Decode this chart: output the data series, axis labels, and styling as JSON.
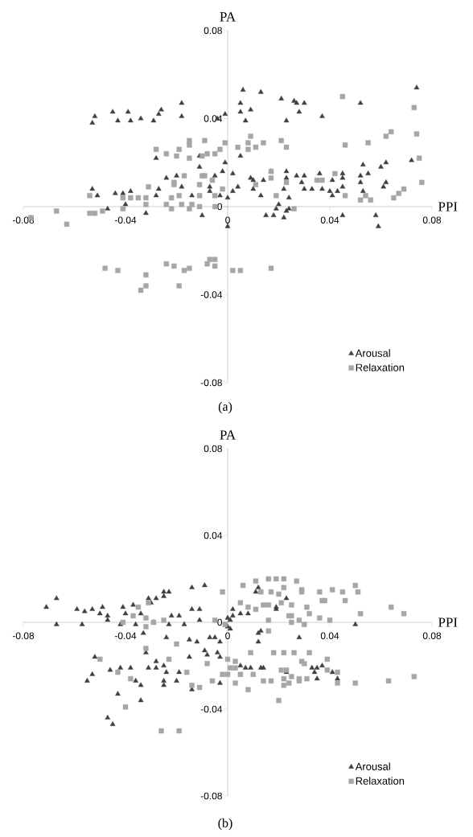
{
  "chart_data": [
    {
      "type": "scatter",
      "xlabel": "PPI",
      "ylabel": "PA",
      "xlim": [
        -0.08,
        0.08
      ],
      "ylim": [
        -0.08,
        0.08
      ],
      "xticks": [
        -0.08,
        -0.04,
        0,
        0.04,
        0.08
      ],
      "yticks": [
        -0.08,
        -0.04,
        0,
        0.04,
        0.08
      ],
      "grid": false,
      "legend": "bottom right",
      "annotations": [
        "(a)"
      ],
      "series": [
        {
          "name": "Arousal",
          "color": "#404040",
          "marker": "triangle",
          "x": [
            -0.052,
            -0.053,
            -0.045,
            -0.043,
            -0.039,
            -0.038,
            -0.034,
            -0.029,
            -0.027,
            -0.026,
            -0.018,
            -0.018,
            -0.004,
            -0.001,
            -0.028,
            -0.011,
            -0.011,
            -0.005,
            -0.002,
            -0.001,
            -0.024,
            -0.02,
            -0.018,
            -0.007,
            -0.007,
            -0.053,
            -0.051,
            -0.044,
            -0.041,
            -0.038,
            -0.04,
            -0.027,
            -0.028,
            -0.014,
            -0.047,
            -0.032,
            -0.01,
            -0.003,
            0.0,
            0.006,
            0.013,
            0.005,
            0.005,
            0.009,
            0.007,
            0.021,
            0.026,
            0.027,
            0.03,
            0.028,
            0.023,
            0.037,
            0.052,
            0.074,
            0.005,
            0.002,
            0.004,
            0.002,
            0.0,
            0.009,
            0.01,
            0.01,
            0.014,
            0.013,
            0.017,
            0.023,
            0.023,
            0.022,
            0.024,
            0.027,
            0.03,
            0.029,
            0.03,
            0.033,
            0.036,
            0.037,
            0.041,
            0.04,
            0.041,
            0.043,
            0.045,
            0.045,
            0.045,
            0.052,
            0.052,
            0.055,
            0.053,
            0.053,
            0.06,
            0.062,
            0.061,
            0.062,
            0.072,
            0.02,
            0.019,
            0.015,
            0.018,
            0.022,
            0.023,
            0.024,
            0.045,
            0.058,
            0.059
          ],
          "values": [
            0.041,
            0.038,
            0.043,
            0.039,
            0.043,
            0.039,
            0.04,
            0.039,
            0.042,
            0.044,
            0.047,
            0.041,
            0.04,
            0.042,
            0.022,
            0.023,
            0.018,
            0.014,
            0.016,
            0.02,
            0.013,
            0.014,
            0.009,
            0.009,
            0.007,
            0.008,
            0.005,
            0.006,
            0.006,
            0.007,
            0.001,
            0.008,
            0.005,
            0.005,
            -0.001,
            -0.003,
            -0.004,
            0.005,
            -0.009,
            0.053,
            0.052,
            0.047,
            0.043,
            0.044,
            0.039,
            0.049,
            0.048,
            0.047,
            0.047,
            0.043,
            0.039,
            0.041,
            0.047,
            0.054,
            0.023,
            0.015,
            0.009,
            0.007,
            0.004,
            0.013,
            0.012,
            0.008,
            0.012,
            0.005,
            0.016,
            0.016,
            0.013,
            0.008,
            0.004,
            0.014,
            0.014,
            0.011,
            0.008,
            0.008,
            0.015,
            0.008,
            0.012,
            0.007,
            0.005,
            0.007,
            0.015,
            0.013,
            0.009,
            0.011,
            0.014,
            0.015,
            0.019,
            0.007,
            0.018,
            0.02,
            0.009,
            0.011,
            0.021,
            0.001,
            -0.001,
            -0.004,
            -0.004,
            -0.005,
            -0.002,
            -0.001,
            -0.004,
            -0.004,
            -0.009
          ]
        },
        {
          "name": "Relaxation",
          "color": "#a6a6a6",
          "marker": "square",
          "x": [
            -0.077,
            -0.067,
            -0.063,
            -0.054,
            -0.052,
            -0.049,
            -0.054,
            -0.041,
            -0.041,
            -0.038,
            -0.035,
            -0.032,
            -0.032,
            -0.031,
            -0.028,
            -0.024,
            -0.019,
            -0.02,
            -0.015,
            -0.015,
            -0.015,
            -0.009,
            -0.01,
            -0.008,
            -0.005,
            -0.003,
            -0.001,
            -0.021,
            -0.021,
            -0.017,
            -0.019,
            -0.022,
            -0.024,
            -0.022,
            -0.018,
            -0.015,
            -0.014,
            -0.011,
            -0.01,
            -0.009,
            -0.011,
            -0.011,
            -0.006,
            -0.005,
            -0.002,
            -0.005,
            -0.048,
            -0.043,
            -0.032,
            -0.034,
            -0.032,
            -0.024,
            -0.021,
            -0.019,
            -0.017,
            -0.015,
            -0.008,
            -0.005,
            -0.007,
            -0.005,
            0.002,
            0.005,
            0.017,
            0.045,
            0.073,
            0.074,
            0.064,
            0.062,
            0.046,
            0.055,
            0.009,
            0.008,
            0.008,
            0.004,
            0.011,
            0.014,
            0.021,
            0.023,
            0.075,
            0.076,
            0.017,
            0.017,
            0.011,
            0.023,
            0.019,
            0.026,
            0.035,
            0.037,
            0.042,
            0.046,
            0.052,
            0.054,
            0.056,
            0.065,
            0.067,
            0.069
          ],
          "values": [
            -0.005,
            -0.002,
            -0.008,
            -0.003,
            -0.003,
            -0.002,
            0.005,
            -0.001,
            0.004,
            0.004,
            0.004,
            0.004,
            0.001,
            0.009,
            0.026,
            0.024,
            0.026,
            0.023,
            0.03,
            0.028,
            0.022,
            0.03,
            0.023,
            0.024,
            0.024,
            0.026,
            0.029,
            0.011,
            0.01,
            0.014,
            0.005,
            0.004,
            0.001,
            -0.001,
            0.001,
            -0.001,
            0.001,
            0.0,
            0.014,
            0.014,
            0.01,
            0.005,
            0.012,
            0.005,
            0.008,
            0.0,
            -0.028,
            -0.029,
            -0.031,
            -0.038,
            -0.036,
            -0.026,
            -0.027,
            -0.036,
            -0.029,
            -0.028,
            -0.026,
            -0.024,
            -0.024,
            -0.027,
            -0.029,
            -0.029,
            -0.028,
            0.05,
            0.045,
            0.033,
            0.034,
            0.032,
            0.028,
            0.029,
            0.032,
            0.029,
            0.026,
            0.027,
            0.027,
            0.029,
            0.03,
            0.027,
            0.022,
            0.011,
            0.016,
            0.013,
            0.01,
            0.011,
            0.005,
            -0.001,
            0.012,
            0.012,
            0.015,
            0.005,
            0.003,
            0.005,
            0.003,
            0.004,
            0.006,
            0.008
          ]
        }
      ]
    },
    {
      "type": "scatter",
      "xlabel": "PPI",
      "ylabel": "PA",
      "xlim": [
        -0.08,
        0.08
      ],
      "ylim": [
        -0.08,
        0.08
      ],
      "xticks": [
        -0.08,
        -0.04,
        0,
        0.04,
        0.08
      ],
      "yticks": [
        -0.08,
        -0.04,
        0,
        0.04,
        0.08
      ],
      "grid": false,
      "legend": "bottom right",
      "annotations": [
        "(b)"
      ],
      "series": [
        {
          "name": "Arousal",
          "color": "#404040",
          "marker": "triangle",
          "x": [
            -0.071,
            -0.067,
            -0.067,
            -0.059,
            -0.056,
            -0.057,
            -0.053,
            -0.049,
            -0.05,
            -0.047,
            -0.047,
            -0.041,
            -0.04,
            -0.042,
            -0.037,
            -0.036,
            -0.034,
            -0.031,
            -0.028,
            -0.03,
            -0.025,
            -0.023,
            -0.025,
            -0.014,
            -0.009,
            -0.014,
            -0.011,
            -0.022,
            -0.019,
            -0.023,
            -0.017,
            -0.011,
            -0.029,
            -0.033,
            -0.024,
            -0.015,
            -0.012,
            -0.007,
            -0.005,
            -0.003,
            -0.052,
            -0.053,
            -0.055,
            -0.046,
            -0.042,
            -0.038,
            -0.032,
            -0.028,
            -0.028,
            -0.031,
            -0.025,
            -0.024,
            -0.019,
            -0.02,
            -0.025,
            -0.025,
            -0.036,
            -0.034,
            -0.015,
            -0.009,
            -0.008,
            -0.004,
            -0.003,
            -0.014,
            -0.003,
            -0.043,
            -0.034,
            -0.047,
            -0.045,
            0.0,
            0.0,
            0.011,
            0.012,
            0.023,
            0.019,
            0.019,
            0.002,
            0.005,
            0.008,
            0.002,
            0.001,
            0.001,
            0.05,
            0.013,
            0.012,
            0.012,
            0.028,
            0.005,
            0.007,
            0.009,
            0.013,
            0.014,
            0.033,
            0.035,
            0.037,
            0.034,
            0.035,
            0.041,
            0.043,
            0.023
          ],
          "values": [
            0.007,
            0.011,
            -0.001,
            0.006,
            0.005,
            -0.001,
            0.006,
            0.007,
            0.004,
            0.003,
            0.001,
            0.007,
            0.004,
            -0.001,
            0.008,
            -0.001,
            0.004,
            0.011,
            0.011,
            0.009,
            0.014,
            0.014,
            0.012,
            0.016,
            0.017,
            0.006,
            0.006,
            0.003,
            0.003,
            -0.001,
            -0.001,
            0.001,
            0.0,
            -0.005,
            -0.007,
            -0.008,
            -0.009,
            -0.007,
            -0.007,
            -0.009,
            -0.016,
            -0.024,
            -0.027,
            -0.022,
            -0.021,
            -0.021,
            -0.014,
            -0.018,
            -0.021,
            -0.021,
            -0.02,
            -0.023,
            -0.023,
            -0.027,
            -0.027,
            -0.029,
            -0.027,
            -0.029,
            -0.016,
            -0.013,
            -0.015,
            -0.014,
            -0.016,
            -0.031,
            -0.028,
            -0.033,
            -0.036,
            -0.044,
            -0.047,
            0.002,
            -0.002,
            0.014,
            0.016,
            0.011,
            0.006,
            0.007,
            0.006,
            0.004,
            0.004,
            0.003,
            0.001,
            -0.003,
            -0.001,
            -0.004,
            -0.005,
            -0.009,
            -0.007,
            -0.02,
            -0.021,
            -0.021,
            -0.021,
            -0.021,
            -0.021,
            -0.021,
            -0.02,
            -0.023,
            -0.026,
            -0.023,
            -0.026,
            -0.023
          ]
        },
        {
          "name": "Relaxation",
          "color": "#a6a6a6",
          "marker": "square",
          "x": [
            0.011,
            0.016,
            0.019,
            0.022,
            0.027,
            0.006,
            0.022,
            0.013,
            0.017,
            0.02,
            0.029,
            0.029,
            0.036,
            0.041,
            0.045,
            0.05,
            0.051,
            0.046,
            0.037,
            0.038,
            0.005,
            0.008,
            0.014,
            0.016,
            0.021,
            0.025,
            0.031,
            0.032,
            0.024,
            0.025,
            0.028,
            0.036,
            0.04,
            0.052,
            0.064,
            0.069,
            0.011,
            0.016,
            0.025,
            0.03,
            -0.001,
            0.016,
            -0.002,
            0.009,
            0.018,
            0.022,
            0.026,
            0.032,
            0.039,
            0.029,
            0.03,
            0.0,
            0.003,
            0.001,
            0.003,
            0.0,
            0.005,
            0.01,
            0.039,
            0.021,
            0.023,
            0.025,
            0.022,
            0.028,
            0.031,
            0.028,
            0.024,
            0.022,
            0.043,
            0.043,
            0.05,
            0.063,
            0.073,
            0.014,
            0.017,
            0.003,
            0.008,
            0.02,
            -0.035,
            -0.031,
            -0.037,
            -0.032,
            -0.041,
            -0.029,
            -0.025,
            -0.032,
            -0.005,
            -0.02,
            -0.032,
            -0.023,
            -0.05,
            -0.043,
            -0.038,
            -0.016,
            -0.014,
            -0.011,
            -0.006,
            -0.008,
            -0.002,
            -0.04,
            -0.026,
            -0.019
          ],
          "values": [
            0.019,
            0.02,
            0.02,
            0.02,
            0.019,
            0.017,
            0.016,
            0.014,
            0.014,
            0.013,
            0.015,
            0.014,
            0.014,
            0.015,
            0.014,
            0.017,
            0.014,
            0.01,
            0.01,
            0.01,
            0.009,
            0.007,
            0.008,
            0.008,
            0.009,
            0.008,
            0.007,
            0.004,
            0.003,
            0.003,
            0.001,
            0.002,
            0.001,
            0.004,
            0.007,
            0.004,
            0.006,
            0.001,
            0.0,
            -0.001,
            -0.001,
            -0.004,
            0.014,
            -0.014,
            -0.014,
            -0.014,
            -0.014,
            -0.014,
            -0.017,
            -0.018,
            -0.019,
            -0.017,
            -0.018,
            -0.021,
            -0.021,
            -0.024,
            -0.024,
            -0.024,
            -0.022,
            -0.022,
            -0.022,
            -0.025,
            -0.026,
            -0.026,
            -0.026,
            -0.027,
            -0.028,
            -0.029,
            -0.023,
            -0.028,
            -0.028,
            -0.027,
            -0.025,
            -0.027,
            -0.027,
            -0.028,
            -0.031,
            -0.036,
            0.007,
            0.009,
            0.003,
            0.002,
            0.0,
            0.0,
            0.001,
            -0.002,
            0.001,
            -0.01,
            -0.012,
            -0.017,
            -0.017,
            -0.023,
            -0.026,
            -0.023,
            -0.029,
            -0.03,
            -0.027,
            -0.019,
            -0.024,
            -0.039,
            -0.05,
            -0.05
          ]
        }
      ]
    }
  ]
}
